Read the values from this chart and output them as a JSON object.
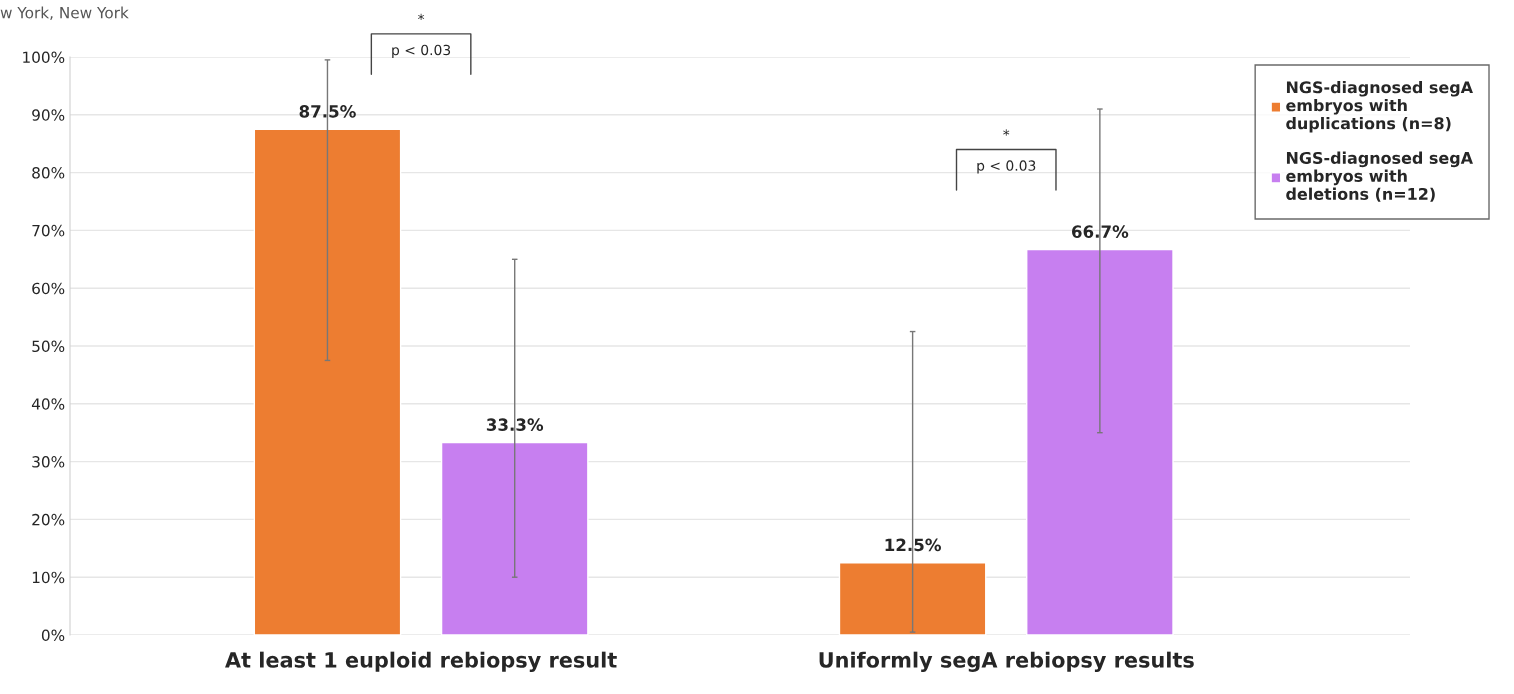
{
  "chart_data": {
    "type": "bar",
    "categories": [
      "At least 1 euploid rebiopsy result",
      "Uniformly segA rebiopsy results"
    ],
    "series": [
      {
        "name": "NGS-diagnosed segA embryos with duplications (n=8)",
        "color": "#ed7d31",
        "values": [
          87.5,
          12.5
        ],
        "value_labels": [
          "87.5%",
          "12.5%"
        ],
        "errors": [
          [
            47.5,
            99.5
          ],
          [
            0.5,
            52.5
          ]
        ]
      },
      {
        "name": "NGS-diagnosed segA embryos with deletions (n=12)",
        "color": "#c77ff0",
        "values": [
          33.3,
          66.7
        ],
        "value_labels": [
          "33.3%",
          "66.7%"
        ],
        "errors": [
          [
            10,
            65
          ],
          [
            35,
            91
          ]
        ]
      }
    ],
    "ylim": [
      0,
      100
    ],
    "yticks": [
      {
        "value": 0,
        "label": "0%"
      },
      {
        "value": 10,
        "label": "10%"
      },
      {
        "value": 20,
        "label": "20%"
      },
      {
        "value": 30,
        "label": "30%"
      },
      {
        "value": 40,
        "label": "40%"
      },
      {
        "value": 50,
        "label": "50%"
      },
      {
        "value": 60,
        "label": "60%"
      },
      {
        "value": 70,
        "label": "70%"
      },
      {
        "value": 80,
        "label": "80%"
      },
      {
        "value": 90,
        "label": "90%"
      },
      {
        "value": 100,
        "label": "100%"
      }
    ],
    "grid": "y",
    "legend": "top right",
    "annotations": [
      "w York, New York",
      "*",
      "p < 0.03",
      "*",
      "p < 0.03"
    ]
  }
}
